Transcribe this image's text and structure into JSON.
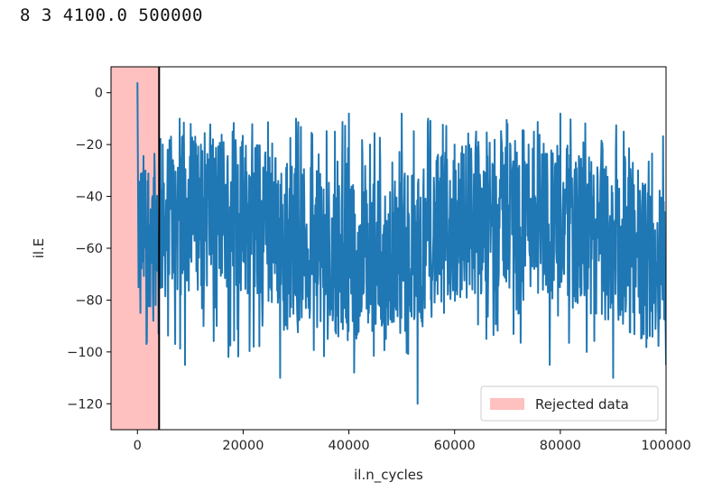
{
  "output": {
    "text": "8 3 4100.0 500000"
  },
  "chart_data": {
    "type": "line",
    "title": "",
    "xlabel": "il.n_cycles",
    "ylabel": "il.E",
    "xlim": [
      -5000,
      100000
    ],
    "ylim": [
      -130,
      10
    ],
    "xticks": [
      0,
      20000,
      40000,
      60000,
      80000,
      100000
    ],
    "xtick_labels": [
      "0",
      "20000",
      "40000",
      "60000",
      "80000",
      "100000"
    ],
    "yticks": [
      0,
      -20,
      -40,
      -60,
      -80,
      -100,
      -120
    ],
    "ytick_labels": [
      "0",
      "−20",
      "−40",
      "−60",
      "−80",
      "−100",
      "−120"
    ],
    "rejected_region": {
      "x_start": -5000,
      "x_end": 4100,
      "label": "Rejected data",
      "color": "#ffc0c0"
    },
    "cutoff_line_x": 4100,
    "series": [
      {
        "color": "#1f77b4",
        "description_points": [
          [
            0,
            4
          ],
          [
            300,
            -50
          ],
          [
            600,
            -85
          ],
          [
            1000,
            -60
          ],
          [
            1500,
            -30
          ],
          [
            2000,
            -75
          ],
          [
            2500,
            -45
          ],
          [
            3000,
            -88
          ],
          [
            3500,
            -55
          ],
          [
            4000,
            -93
          ],
          [
            5000,
            -35
          ],
          [
            6000,
            -70
          ],
          [
            8000,
            -10
          ],
          [
            9000,
            -105
          ],
          [
            12000,
            -20
          ],
          [
            15000,
            -90
          ],
          [
            18000,
            -15
          ],
          [
            20000,
            -65
          ],
          [
            22000,
            -98
          ],
          [
            25000,
            -25
          ],
          [
            27000,
            -110
          ],
          [
            30000,
            -10
          ],
          [
            33000,
            -70
          ],
          [
            36000,
            -95
          ],
          [
            40000,
            -8
          ],
          [
            41000,
            -108
          ],
          [
            44000,
            -20
          ],
          [
            47000,
            -95
          ],
          [
            50000,
            -8
          ],
          [
            53000,
            -120
          ],
          [
            55000,
            -10
          ],
          [
            58000,
            -85
          ],
          [
            60000,
            -20
          ],
          [
            63000,
            -60
          ],
          [
            66000,
            -95
          ],
          [
            70000,
            -12
          ],
          [
            73000,
            -80
          ],
          [
            75000,
            -15
          ],
          [
            78000,
            -105
          ],
          [
            80000,
            -8
          ],
          [
            83000,
            -70
          ],
          [
            85000,
            -100
          ],
          [
            88000,
            -22
          ],
          [
            90000,
            -110
          ],
          [
            92000,
            -15
          ],
          [
            95000,
            -85
          ],
          [
            97000,
            -40
          ],
          [
            100000,
            -105
          ]
        ],
        "range_min": -120,
        "range_max": 4
      }
    ],
    "legend": {
      "placement": "lower-right",
      "entries": [
        "Rejected data"
      ]
    }
  }
}
